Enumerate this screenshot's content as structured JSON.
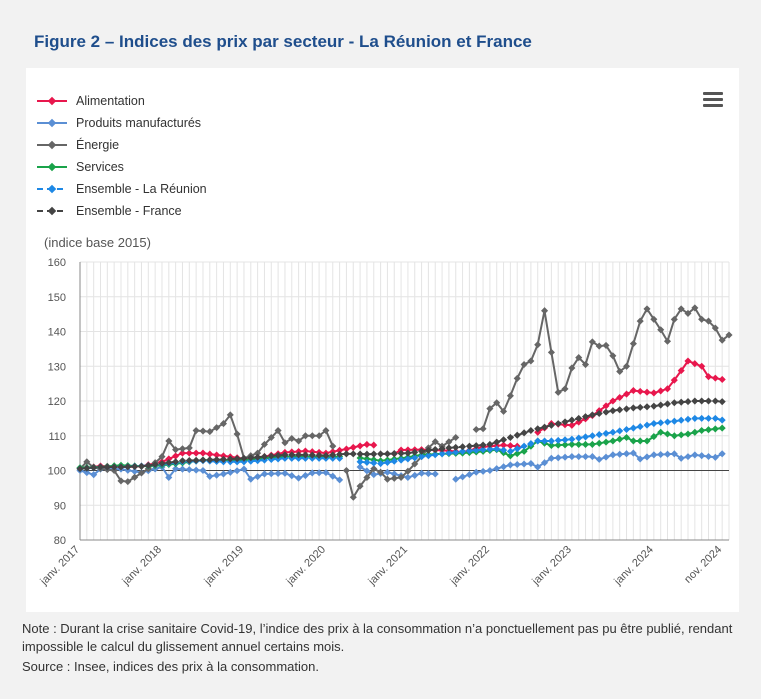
{
  "header": {
    "title": "Figure 2 – Indices des prix par secteur - La Réunion et France"
  },
  "footer": {
    "note": "Note : Durant la crise sanitaire Covid-19, l’indice des prix à la consommation n’a ponctuellement pas pu être publié, rendant impossible le calcul du glissement annuel certains mois.",
    "source": "Source : Insee, indices des prix à la consommation."
  },
  "chart_data": {
    "type": "line",
    "ylabel": "(indice base 2015)",
    "ylim": [
      80,
      160
    ],
    "yticks": [
      80,
      90,
      100,
      110,
      120,
      130,
      140,
      150,
      160
    ],
    "x_range": [
      "2017-01",
      "2024-11"
    ],
    "xtick_labels": [
      {
        "month": 0,
        "label": "janv. 2017"
      },
      {
        "month": 12,
        "label": "janv. 2018"
      },
      {
        "month": 24,
        "label": "janv. 2019"
      },
      {
        "month": 36,
        "label": "janv. 2020"
      },
      {
        "month": 48,
        "label": "janv. 2021"
      },
      {
        "month": 60,
        "label": "janv. 2022"
      },
      {
        "month": 72,
        "label": "janv. 2023"
      },
      {
        "month": 84,
        "label": "janv. 2024"
      },
      {
        "month": 94,
        "label": "nov. 2024"
      }
    ],
    "legend_position": "top-left",
    "series": [
      {
        "name": "Alimentation",
        "color": "#e8174d",
        "dash": false,
        "keypoints": [
          [
            0,
            100.5
          ],
          [
            3,
            101.3
          ],
          [
            6,
            101.0
          ],
          [
            9,
            101.2
          ],
          [
            12,
            102.5
          ],
          [
            15,
            105.0
          ],
          [
            18,
            105.0
          ],
          [
            21,
            104.2
          ],
          [
            24,
            103.4
          ],
          [
            27,
            104.0
          ],
          [
            30,
            105.2
          ],
          [
            33,
            105.6
          ],
          [
            36,
            105.0
          ],
          [
            39,
            106.2
          ],
          [
            42,
            107.5
          ],
          [
            43,
            107.3
          ],
          [
            44,
            null
          ],
          [
            46,
            104.8
          ],
          [
            47,
            105.9
          ],
          [
            50,
            106.0
          ],
          [
            53,
            105.8
          ],
          [
            56,
            105.3
          ],
          [
            59,
            106.8
          ],
          [
            62,
            107.3
          ],
          [
            64,
            107.0
          ],
          [
            65,
            null
          ],
          [
            67,
            111.0
          ],
          [
            69,
            113.5
          ],
          [
            72,
            113.0
          ],
          [
            75,
            115.8
          ],
          [
            78,
            120.0
          ],
          [
            81,
            123.0
          ],
          [
            84,
            122.3
          ],
          [
            86,
            123.5
          ],
          [
            87,
            126.0
          ],
          [
            89,
            131.5
          ],
          [
            91,
            130.0
          ],
          [
            92,
            127.0
          ],
          [
            94,
            126.2
          ]
        ]
      },
      {
        "name": "Produits manufacturés",
        "color": "#5b8fd4",
        "dash": false,
        "keypoints": [
          [
            0,
            100.0
          ],
          [
            2,
            98.8
          ],
          [
            3,
            100.4
          ],
          [
            6,
            100.4
          ],
          [
            9,
            99.4
          ],
          [
            12,
            101.0
          ],
          [
            13,
            98.0
          ],
          [
            14,
            100.5
          ],
          [
            18,
            100.0
          ],
          [
            19,
            98.3
          ],
          [
            21,
            99.0
          ],
          [
            24,
            100.4
          ],
          [
            25,
            97.5
          ],
          [
            27,
            99.0
          ],
          [
            30,
            99.2
          ],
          [
            32,
            97.8
          ],
          [
            34,
            99.3
          ],
          [
            36,
            99.4
          ],
          [
            38,
            97.3
          ],
          [
            39,
            null
          ],
          [
            41,
            101.0
          ],
          [
            43,
            98.8
          ],
          [
            45,
            99.5
          ],
          [
            48,
            98.0
          ],
          [
            50,
            99.2
          ],
          [
            52,
            99.0
          ],
          [
            53,
            null
          ],
          [
            55,
            97.5
          ],
          [
            58,
            99.5
          ],
          [
            60,
            100.0
          ],
          [
            63,
            101.6
          ],
          [
            66,
            102.0
          ],
          [
            67,
            101.0
          ],
          [
            69,
            103.5
          ],
          [
            72,
            104.0
          ],
          [
            75,
            104.0
          ],
          [
            76,
            103.2
          ],
          [
            78,
            104.5
          ],
          [
            81,
            105.0
          ],
          [
            82,
            103.3
          ],
          [
            84,
            104.5
          ],
          [
            87,
            104.8
          ],
          [
            88,
            103.5
          ],
          [
            90,
            104.5
          ],
          [
            93,
            103.8
          ],
          [
            94,
            104.8
          ]
        ]
      },
      {
        "name": "Énergie",
        "color": "#666666",
        "dash": false,
        "keypoints": [
          [
            0,
            100.5
          ],
          [
            1,
            102.5
          ],
          [
            2,
            100.8
          ],
          [
            5,
            100.0
          ],
          [
            6,
            97.0
          ],
          [
            7,
            96.8
          ],
          [
            10,
            100.5
          ],
          [
            12,
            104.0
          ],
          [
            13,
            108.5
          ],
          [
            14,
            106.0
          ],
          [
            16,
            106.5
          ],
          [
            17,
            111.5
          ],
          [
            19,
            111.2
          ],
          [
            21,
            113.5
          ],
          [
            22,
            116.0
          ],
          [
            23,
            110.5
          ],
          [
            24,
            103.5
          ],
          [
            26,
            105.0
          ],
          [
            27,
            107.5
          ],
          [
            29,
            111.5
          ],
          [
            30,
            108.0
          ],
          [
            31,
            109.2
          ],
          [
            32,
            108.5
          ],
          [
            33,
            110.0
          ],
          [
            35,
            110.0
          ],
          [
            36,
            111.5
          ],
          [
            37,
            107.0
          ],
          [
            38,
            null
          ],
          [
            39,
            100.0
          ],
          [
            40,
            92.3
          ],
          [
            41,
            95.5
          ],
          [
            43,
            100.5
          ],
          [
            44,
            99.5
          ],
          [
            45,
            97.5
          ],
          [
            47,
            98.0
          ],
          [
            48,
            99.8
          ],
          [
            50,
            104.0
          ],
          [
            51,
            106.5
          ],
          [
            52,
            108.3
          ],
          [
            53,
            107.0
          ],
          [
            55,
            109.5
          ],
          [
            56,
            null
          ],
          [
            58,
            111.8
          ],
          [
            59,
            112.0
          ],
          [
            60,
            117.8
          ],
          [
            61,
            119.5
          ],
          [
            62,
            117.0
          ],
          [
            63,
            121.5
          ],
          [
            64,
            126.5
          ],
          [
            65,
            130.5
          ],
          [
            66,
            131.5
          ],
          [
            67,
            136.2
          ],
          [
            68,
            146.0
          ],
          [
            69,
            134.0
          ],
          [
            70,
            122.5
          ],
          [
            71,
            123.5
          ],
          [
            72,
            129.5
          ],
          [
            73,
            132.5
          ],
          [
            74,
            130.5
          ],
          [
            75,
            137.0
          ],
          [
            76,
            135.8
          ],
          [
            77,
            136.0
          ],
          [
            78,
            133.0
          ],
          [
            79,
            128.5
          ],
          [
            80,
            130.0
          ],
          [
            81,
            136.5
          ],
          [
            82,
            143.0
          ],
          [
            83,
            146.5
          ],
          [
            84,
            143.5
          ],
          [
            85,
            140.5
          ],
          [
            86,
            137.2
          ],
          [
            87,
            143.5
          ],
          [
            88,
            146.5
          ],
          [
            89,
            145.2
          ],
          [
            90,
            146.8
          ],
          [
            91,
            143.5
          ],
          [
            92,
            143.0
          ],
          [
            93,
            141.0
          ],
          [
            94,
            137.5
          ],
          [
            95,
            139.0
          ]
        ]
      },
      {
        "name": "Services",
        "color": "#1aa34a",
        "dash": false,
        "keypoints": [
          [
            0,
            100.8
          ],
          [
            3,
            101.0
          ],
          [
            6,
            101.5
          ],
          [
            9,
            101.2
          ],
          [
            12,
            101.5
          ],
          [
            15,
            102.2
          ],
          [
            18,
            103.0
          ],
          [
            21,
            103.0
          ],
          [
            24,
            103.0
          ],
          [
            27,
            103.5
          ],
          [
            30,
            104.0
          ],
          [
            33,
            104.0
          ],
          [
            36,
            103.8
          ],
          [
            38,
            104.0
          ],
          [
            39,
            null
          ],
          [
            41,
            103.6
          ],
          [
            44,
            102.8
          ],
          [
            47,
            103.5
          ],
          [
            50,
            104.5
          ],
          [
            53,
            104.8
          ],
          [
            56,
            105.0
          ],
          [
            59,
            105.5
          ],
          [
            61,
            106.0
          ],
          [
            63,
            104.2
          ],
          [
            65,
            105.5
          ],
          [
            67,
            108.5
          ],
          [
            69,
            107.2
          ],
          [
            72,
            107.5
          ],
          [
            75,
            107.5
          ],
          [
            78,
            108.5
          ],
          [
            80,
            109.5
          ],
          [
            81,
            108.5
          ],
          [
            83,
            108.5
          ],
          [
            85,
            111.0
          ],
          [
            87,
            110.0
          ],
          [
            89,
            110.5
          ],
          [
            91,
            111.5
          ],
          [
            94,
            112.2
          ]
        ]
      },
      {
        "name": "Ensemble - La Réunion",
        "color": "#1e88e5",
        "dash": true,
        "keypoints": [
          [
            0,
            100.5
          ],
          [
            3,
            101.0
          ],
          [
            6,
            101.0
          ],
          [
            9,
            101.3
          ],
          [
            12,
            101.8
          ],
          [
            15,
            102.5
          ],
          [
            18,
            102.8
          ],
          [
            21,
            102.5
          ],
          [
            24,
            102.5
          ],
          [
            27,
            103.0
          ],
          [
            30,
            103.5
          ],
          [
            33,
            103.5
          ],
          [
            36,
            103.5
          ],
          [
            38,
            103.5
          ],
          [
            39,
            null
          ],
          [
            41,
            102.5
          ],
          [
            44,
            102.0
          ],
          [
            47,
            103.0
          ],
          [
            50,
            104.0
          ],
          [
            53,
            104.8
          ],
          [
            56,
            105.5
          ],
          [
            59,
            106.0
          ],
          [
            61,
            106.2
          ],
          [
            63,
            105.5
          ],
          [
            65,
            107.0
          ],
          [
            67,
            108.5
          ],
          [
            69,
            108.5
          ],
          [
            72,
            109.0
          ],
          [
            75,
            110.0
          ],
          [
            78,
            111.0
          ],
          [
            81,
            112.2
          ],
          [
            84,
            113.5
          ],
          [
            87,
            114.2
          ],
          [
            90,
            115.0
          ],
          [
            93,
            115.0
          ],
          [
            94,
            114.5
          ]
        ]
      },
      {
        "name": "Ensemble - France",
        "color": "#444444",
        "dash": true,
        "keypoints": [
          [
            0,
            100.5
          ],
          [
            3,
            101.0
          ],
          [
            6,
            101.0
          ],
          [
            9,
            101.2
          ],
          [
            12,
            102.0
          ],
          [
            15,
            102.8
          ],
          [
            18,
            103.0
          ],
          [
            21,
            103.2
          ],
          [
            24,
            103.5
          ],
          [
            27,
            104.0
          ],
          [
            30,
            104.5
          ],
          [
            33,
            104.5
          ],
          [
            36,
            104.3
          ],
          [
            39,
            104.8
          ],
          [
            42,
            104.7
          ],
          [
            45,
            104.8
          ],
          [
            48,
            105.0
          ],
          [
            51,
            105.8
          ],
          [
            54,
            106.5
          ],
          [
            57,
            107.0
          ],
          [
            60,
            107.5
          ],
          [
            63,
            109.5
          ],
          [
            66,
            111.5
          ],
          [
            69,
            113.0
          ],
          [
            72,
            114.5
          ],
          [
            75,
            116.0
          ],
          [
            78,
            117.2
          ],
          [
            81,
            118.0
          ],
          [
            84,
            118.5
          ],
          [
            87,
            119.5
          ],
          [
            90,
            120.0
          ],
          [
            93,
            120.0
          ],
          [
            94,
            119.8
          ]
        ]
      }
    ]
  }
}
